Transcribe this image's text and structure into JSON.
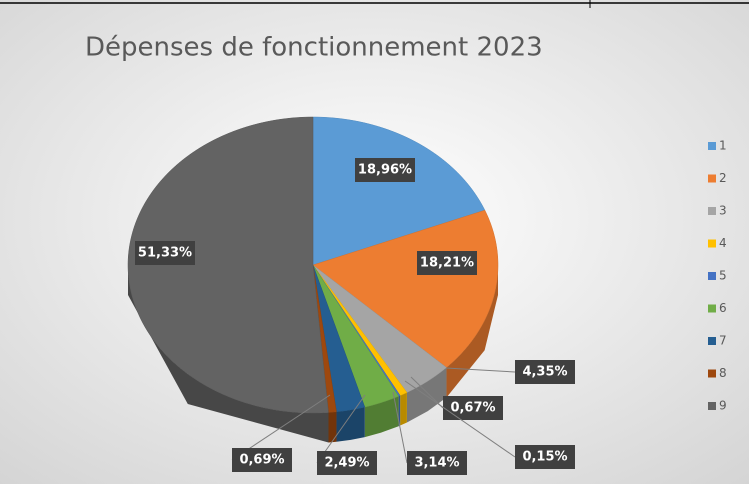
{
  "chart_data": {
    "type": "pie",
    "title": "Dépenses de fonctionnement 2023",
    "categories": [
      "1",
      "2",
      "3",
      "4",
      "5",
      "6",
      "7",
      "8",
      "9"
    ],
    "values": [
      18.96,
      18.21,
      4.35,
      0.67,
      0.15,
      3.14,
      2.49,
      0.69,
      51.33
    ],
    "value_labels": [
      "18,96%",
      "18,21%",
      "4,35%",
      "0,67%",
      "0,15%",
      "3,14%",
      "2,49%",
      "0,69%",
      "51,33%"
    ],
    "colors": [
      "#5b9bd5",
      "#ed7d31",
      "#a5a5a5",
      "#ffc000",
      "#4472c4",
      "#70ad47",
      "#255e91",
      "#9e480e",
      "#636363"
    ],
    "legend": "right"
  }
}
